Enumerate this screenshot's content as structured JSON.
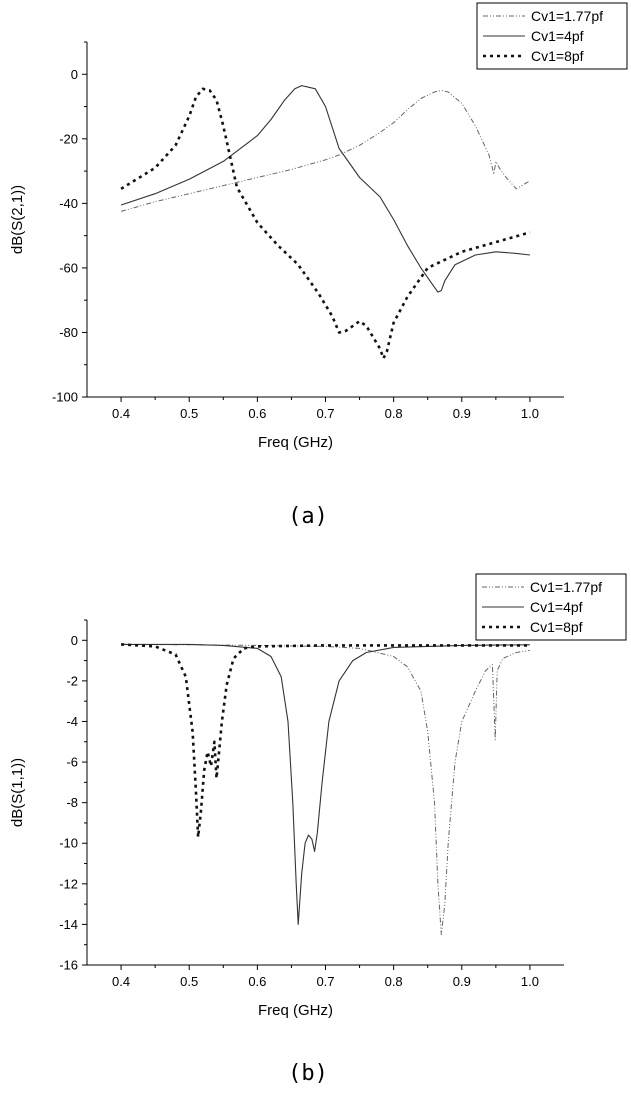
{
  "chart_data": [
    {
      "type": "line",
      "panel_label": "(a)",
      "xlabel": "Freq (GHz)",
      "ylabel": "dB(S(2,1))",
      "xlim": [
        0.35,
        1.05
      ],
      "ylim": [
        -100,
        10
      ],
      "xticks": [
        0.4,
        0.5,
        0.6,
        0.7,
        0.8,
        0.9,
        1.0
      ],
      "xtick_labels": [
        "0.4",
        "0.5",
        "0.6",
        "0.7",
        "0.8",
        "0.9",
        "1.0"
      ],
      "yticks": [
        0,
        -20,
        -40,
        -60,
        -80,
        -100
      ],
      "ytick_labels": [
        "0",
        "-20",
        "-40",
        "-60",
        "-80",
        "-100"
      ],
      "grid": false,
      "legend_position": "top-right",
      "series": [
        {
          "name": "Cv1=1.77pf",
          "style": "dash-dot-dot",
          "x": [
            0.4,
            0.45,
            0.5,
            0.55,
            0.6,
            0.65,
            0.7,
            0.72,
            0.75,
            0.78,
            0.8,
            0.82,
            0.84,
            0.86,
            0.87,
            0.88,
            0.9,
            0.92,
            0.94,
            0.945,
            0.947,
            0.95,
            0.955,
            0.965,
            0.98,
            1.0
          ],
          "y": [
            -42.5,
            -39.5,
            -37,
            -34.5,
            -32,
            -29.5,
            -26.5,
            -25,
            -22,
            -18,
            -15,
            -11,
            -7.5,
            -5.5,
            -5,
            -5.5,
            -9,
            -16,
            -25,
            -29,
            -31,
            -27,
            -29,
            -32,
            -35.5,
            -33
          ]
        },
        {
          "name": "Cv1=4pf",
          "style": "solid",
          "x": [
            0.4,
            0.45,
            0.5,
            0.55,
            0.6,
            0.62,
            0.64,
            0.655,
            0.665,
            0.675,
            0.685,
            0.7,
            0.72,
            0.75,
            0.78,
            0.8,
            0.82,
            0.84,
            0.86,
            0.865,
            0.87,
            0.875,
            0.89,
            0.92,
            0.95,
            0.98,
            1.0
          ],
          "y": [
            -40.5,
            -37,
            -32.5,
            -27,
            -19,
            -14,
            -8,
            -4.5,
            -3.5,
            -4,
            -4.5,
            -10,
            -23,
            -32,
            -38,
            -45,
            -53,
            -60,
            -66,
            -67.5,
            -67,
            -64,
            -59,
            -56,
            -55,
            -55.5,
            -56
          ]
        },
        {
          "name": "Cv1=8pf",
          "style": "dot",
          "x": [
            0.4,
            0.45,
            0.48,
            0.5,
            0.51,
            0.52,
            0.53,
            0.54,
            0.55,
            0.57,
            0.6,
            0.63,
            0.66,
            0.69,
            0.71,
            0.72,
            0.73,
            0.75,
            0.76,
            0.78,
            0.785,
            0.79,
            0.8,
            0.82,
            0.85,
            0.9,
            0.95,
            1.0
          ],
          "y": [
            -35.5,
            -29,
            -22,
            -13,
            -7,
            -4.5,
            -5,
            -8,
            -16,
            -35,
            -46,
            -53,
            -59,
            -68,
            -75,
            -80,
            -79.5,
            -76.5,
            -78,
            -85,
            -88,
            -86,
            -77,
            -69,
            -60,
            -55,
            -52,
            -49
          ]
        }
      ]
    },
    {
      "type": "line",
      "panel_label": "(b)",
      "xlabel": "Freq (GHz)",
      "ylabel": "dB(S(1,1))",
      "xlim": [
        0.35,
        1.05
      ],
      "ylim": [
        -16,
        1
      ],
      "xticks": [
        0.4,
        0.5,
        0.6,
        0.7,
        0.8,
        0.9,
        1.0
      ],
      "xtick_labels": [
        "0.4",
        "0.5",
        "0.6",
        "0.7",
        "0.8",
        "0.9",
        "1.0"
      ],
      "yticks": [
        0,
        -2,
        -4,
        -6,
        -8,
        -10,
        -12,
        -14,
        -16
      ],
      "ytick_labels": [
        "0",
        "-2",
        "-4",
        "-6",
        "-8",
        "-10",
        "-12",
        "-14",
        "-16"
      ],
      "grid": false,
      "legend_position": "top-right",
      "series": [
        {
          "name": "Cv1=1.77pf",
          "style": "dash-dot-dot",
          "x": [
            0.4,
            0.5,
            0.6,
            0.7,
            0.75,
            0.8,
            0.82,
            0.84,
            0.85,
            0.86,
            0.865,
            0.87,
            0.875,
            0.88,
            0.89,
            0.9,
            0.92,
            0.935,
            0.945,
            0.947,
            0.949,
            0.952,
            0.96,
            0.98,
            1.0
          ],
          "y": [
            -0.2,
            -0.22,
            -0.25,
            -0.3,
            -0.4,
            -0.8,
            -1.3,
            -2.5,
            -4.5,
            -8,
            -12,
            -14.5,
            -13,
            -10,
            -6,
            -4,
            -2.5,
            -1.5,
            -1.2,
            -3,
            -4.9,
            -1.5,
            -0.9,
            -0.6,
            -0.5
          ]
        },
        {
          "name": "Cv1=4pf",
          "style": "solid",
          "x": [
            0.4,
            0.5,
            0.55,
            0.6,
            0.62,
            0.635,
            0.645,
            0.652,
            0.657,
            0.66,
            0.665,
            0.67,
            0.675,
            0.68,
            0.684,
            0.688,
            0.695,
            0.705,
            0.72,
            0.74,
            0.76,
            0.8,
            0.9,
            1.0
          ],
          "y": [
            -0.2,
            -0.2,
            -0.25,
            -0.4,
            -0.8,
            -1.8,
            -4,
            -8,
            -12,
            -14,
            -11.5,
            -10,
            -9.6,
            -9.8,
            -10.4,
            -9.5,
            -7,
            -4,
            -2,
            -1,
            -0.6,
            -0.35,
            -0.25,
            -0.22
          ]
        },
        {
          "name": "Cv1=8pf",
          "style": "dot",
          "x": [
            0.4,
            0.45,
            0.48,
            0.495,
            0.505,
            0.51,
            0.513,
            0.517,
            0.522,
            0.527,
            0.532,
            0.537,
            0.54,
            0.543,
            0.548,
            0.555,
            0.565,
            0.58,
            0.6,
            0.7,
            0.8,
            0.9,
            1.0
          ],
          "y": [
            -0.2,
            -0.3,
            -0.7,
            -1.8,
            -4.5,
            -7.5,
            -9.7,
            -8.5,
            -6.4,
            -5.5,
            -6.2,
            -5.0,
            -6.8,
            -5.8,
            -4,
            -2.2,
            -0.9,
            -0.4,
            -0.3,
            -0.25,
            -0.25,
            -0.25,
            -0.25
          ]
        }
      ]
    }
  ]
}
